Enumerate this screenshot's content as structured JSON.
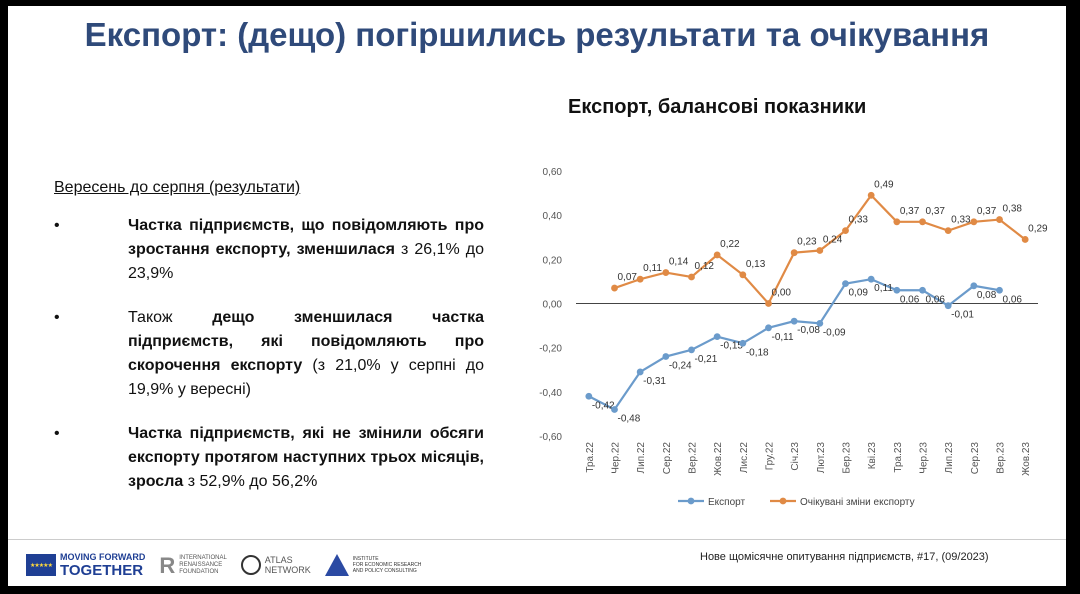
{
  "slide": {
    "title": "Експорт: (дещо) погіршились результати та очікування",
    "subtitle": "Вересень до серпня (результати)",
    "bullets": [
      {
        "symbol": "•",
        "bold1": "Частка підприємств, що повідомляють про зростання експорту, зменшилася",
        "text1": " з 26,1% до 23,9%"
      },
      {
        "symbol": "•",
        "text0": "Також ",
        "bold1": "дещо зменшилася частка підприємств, які повідомляють про скорочення експорту",
        "text1": " (з 21,0% у серпні до 19,9% у вересні)"
      },
      {
        "symbol": "•",
        "bold1": "Частка підприємств, які не змінили обсяги експорту протягом наступних трьох місяців, зросла",
        "text1": " з 52,9% до 56,2%"
      }
    ],
    "source": "Нове щомісячне опитування підприємств, #17, (09/2023)"
  },
  "logos": {
    "eu_line1": "MOVING FORWARD",
    "eu_line2": "TOGETHER",
    "irf_lines": [
      "INTERNATIONAL",
      "RENAISSANCE",
      "FOUNDATION"
    ],
    "atlas_lines": [
      "ATLAS",
      "NETWORK"
    ],
    "ier_lines": [
      "INSTITUTE",
      "FOR ECONOMIC RESEARCH",
      "AND POLICY CONSULTING"
    ]
  },
  "chart_data": {
    "type": "line",
    "title": "Експорт, балансові показники",
    "categories": [
      "Тра.22",
      "Чер.22",
      "Лип.22",
      "Сер.22",
      "Вер.22",
      "Жов.22",
      "Лис.22",
      "Гру.22",
      "Січ.23",
      "Лют.23",
      "Бер.23",
      "Кві.23",
      "Тра.23",
      "Чер.23",
      "Лип.23",
      "Сер.23",
      "Вер.23",
      "Жов.23"
    ],
    "ylim": [
      -0.6,
      0.6
    ],
    "yticks": [
      -0.6,
      -0.4,
      -0.2,
      0.0,
      0.2,
      0.4,
      0.6
    ],
    "ytick_labels": [
      "-0,60",
      "-0,40",
      "-0,20",
      "0,00",
      "0,20",
      "0,40",
      "0,60"
    ],
    "series": [
      {
        "name": "Експорт",
        "color": "#6b9bcb",
        "values": [
          -0.42,
          -0.48,
          -0.31,
          -0.24,
          -0.21,
          -0.15,
          -0.18,
          -0.11,
          -0.08,
          -0.09,
          0.09,
          0.11,
          0.06,
          0.06,
          -0.01,
          0.08,
          0.06,
          null
        ],
        "labels": [
          "-0,42",
          "-0,48",
          "-0,31",
          "-0,24",
          "-0,21",
          "-0,15",
          "-0,18",
          "-0,11",
          "-0,08",
          "-0,09",
          "0,09",
          "0,11",
          "0,06",
          "0,06",
          "-0,01",
          "0,08",
          "0,06",
          ""
        ]
      },
      {
        "name": "Очікувані зміни експорту",
        "color": "#e08a45",
        "values": [
          null,
          0.07,
          0.11,
          0.14,
          0.12,
          0.22,
          0.13,
          0.0,
          0.23,
          0.24,
          0.33,
          0.49,
          0.37,
          0.37,
          0.33,
          0.37,
          0.38,
          0.29
        ],
        "labels": [
          "",
          "0,07",
          "0,11",
          "0,14",
          "0,12",
          "0,22",
          "0,13",
          "0,00",
          "0,23",
          "0,24",
          "0,33",
          "0,49",
          "0,37",
          "0,37",
          "0,33",
          "0,37",
          "0,38",
          "0,29"
        ]
      }
    ]
  }
}
